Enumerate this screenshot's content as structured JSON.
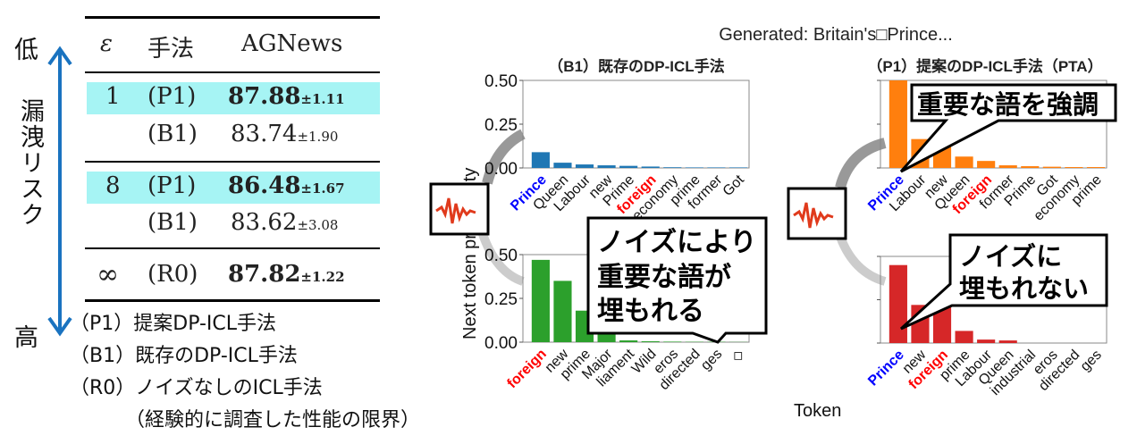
{
  "risk_axis": {
    "low": "低",
    "label": "漏洩リスク",
    "high": "高"
  },
  "table": {
    "headers": [
      "ε",
      "手法",
      "AGNews"
    ],
    "rows": [
      {
        "eps": "1",
        "method": "(P1)",
        "value": "87.88",
        "std": "±1.11",
        "bold": true,
        "highlight": true
      },
      {
        "eps": "",
        "method": "(B1)",
        "value": "83.74",
        "std": "±1.90",
        "bold": false,
        "highlight": false
      },
      {
        "eps": "8",
        "method": "(P1)",
        "value": "86.48",
        "std": "±1.67",
        "bold": true,
        "highlight": true
      },
      {
        "eps": "",
        "method": "(B1)",
        "value": "83.62",
        "std": "±3.08",
        "bold": false,
        "highlight": false
      },
      {
        "eps": "∞",
        "method": "(R0)",
        "value": "87.82",
        "std": "±1.22",
        "bold": true,
        "highlight": false
      }
    ]
  },
  "legend": [
    "（P1）提案DP-ICL手法",
    "（B1）既存のDP-ICL手法",
    "（R0）ノイズなしのICL手法",
    "（経験的に調査した性能の限界）"
  ],
  "generated": "Generated: Britain's□Prince...",
  "callouts": {
    "b1": [
      "ノイズにより",
      "重要な語が",
      "埋もれる"
    ],
    "p1_top": "重要な語を強調",
    "p1_bottom": [
      "ノイズに",
      "埋もれない"
    ]
  },
  "ylabel": "Next token probability",
  "xlabel": "Token",
  "colors": {
    "blue_bar": "#1f77b4",
    "green_bar": "#2ca02c",
    "orange_bar": "#ff7f0e",
    "red_bar": "#d62728",
    "highlight": "#a6f4f4",
    "arrow": "#1a73c0",
    "noise": "#e03a1c"
  },
  "chart_data": [
    {
      "type": "bar",
      "title": "（B1）既存のDP-ICL手法",
      "ylim": [
        0,
        0.5
      ],
      "yticks": [
        "0.50",
        "0.25",
        "0.00"
      ],
      "color": "#1f77b4",
      "categories": [
        "Prince",
        "Queen",
        "Labour",
        "new",
        "Prime",
        "foreign",
        "economy",
        "prime",
        "former",
        "Got"
      ],
      "values": [
        0.09,
        0.03,
        0.02,
        0.015,
        0.012,
        0.008,
        0.004,
        0.003,
        0.003,
        0.003
      ]
    },
    {
      "type": "bar",
      "title": "",
      "ylim": [
        0,
        0.5
      ],
      "yticks": [
        "0.50",
        "0.25",
        "0.00"
      ],
      "color": "#2ca02c",
      "categories": [
        "foreign",
        "new",
        "prime",
        "Major",
        "liament",
        "Wild",
        "eros",
        "directed",
        "ges",
        "◇"
      ],
      "values": [
        0.47,
        0.35,
        0.18,
        0.05,
        0.01,
        0.005,
        0.003,
        0.002,
        0.002,
        0.001
      ]
    },
    {
      "type": "bar",
      "title": "（P1）提案のDP-ICL手法（PTA）",
      "ylim": [
        0,
        0.5
      ],
      "yticks": [],
      "color": "#ff7f0e",
      "categories": [
        "Prince",
        "Labour",
        "new",
        "Queen",
        "foreign",
        "former",
        "Prime",
        "Got",
        "economy",
        "prime"
      ],
      "values": [
        0.5,
        0.165,
        0.13,
        0.065,
        0.04,
        0.015,
        0.01,
        0.007,
        0.005,
        0.005
      ]
    },
    {
      "type": "bar",
      "title": "",
      "ylim": [
        0,
        0.5
      ],
      "yticks": [],
      "color": "#d62728",
      "categories": [
        "Prince",
        "new",
        "foreign",
        "prime",
        "Labour",
        "Queen",
        "industrial",
        "eros",
        "directed",
        "ges"
      ],
      "values": [
        0.45,
        0.22,
        0.21,
        0.07,
        0.02,
        0.015,
        0,
        0,
        0,
        0
      ]
    }
  ]
}
